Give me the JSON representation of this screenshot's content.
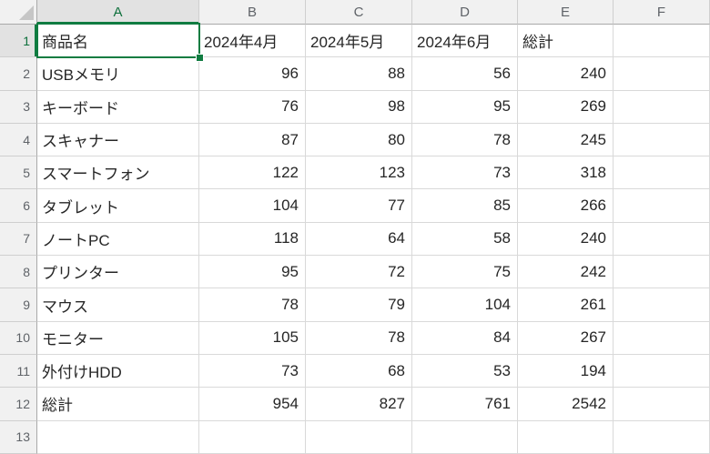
{
  "colors": {
    "accent_green": "#107C41",
    "gridline": "#D9D9D9",
    "header_bg": "#F1F1F1",
    "selected_header_bg": "#E2E2E2"
  },
  "grid": {
    "columns": [
      "A",
      "B",
      "C",
      "D",
      "E",
      "F"
    ],
    "selected_cell": "A1",
    "selected_column": "A",
    "selected_row": "1",
    "rows": [
      {
        "n": "1",
        "cells": [
          "商品名",
          "2024年4月",
          "2024年5月",
          "2024年6月",
          "総計",
          ""
        ]
      },
      {
        "n": "2",
        "cells": [
          "USBメモリ",
          "96",
          "88",
          "56",
          "240",
          ""
        ]
      },
      {
        "n": "3",
        "cells": [
          "キーボード",
          "76",
          "98",
          "95",
          "269",
          ""
        ]
      },
      {
        "n": "4",
        "cells": [
          "スキャナー",
          "87",
          "80",
          "78",
          "245",
          ""
        ]
      },
      {
        "n": "5",
        "cells": [
          "スマートフォン",
          "122",
          "123",
          "73",
          "318",
          ""
        ]
      },
      {
        "n": "6",
        "cells": [
          "タブレット",
          "104",
          "77",
          "85",
          "266",
          ""
        ]
      },
      {
        "n": "7",
        "cells": [
          "ノートPC",
          "118",
          "64",
          "58",
          "240",
          ""
        ]
      },
      {
        "n": "8",
        "cells": [
          "プリンター",
          "95",
          "72",
          "75",
          "242",
          ""
        ]
      },
      {
        "n": "9",
        "cells": [
          "マウス",
          "78",
          "79",
          "104",
          "261",
          ""
        ]
      },
      {
        "n": "10",
        "cells": [
          "モニター",
          "105",
          "78",
          "84",
          "267",
          ""
        ]
      },
      {
        "n": "11",
        "cells": [
          "外付けHDD",
          "73",
          "68",
          "53",
          "194",
          ""
        ]
      },
      {
        "n": "12",
        "cells": [
          "総計",
          "954",
          "827",
          "761",
          "2542",
          ""
        ]
      },
      {
        "n": "13",
        "cells": [
          "",
          "",
          "",
          "",
          "",
          ""
        ]
      }
    ]
  }
}
